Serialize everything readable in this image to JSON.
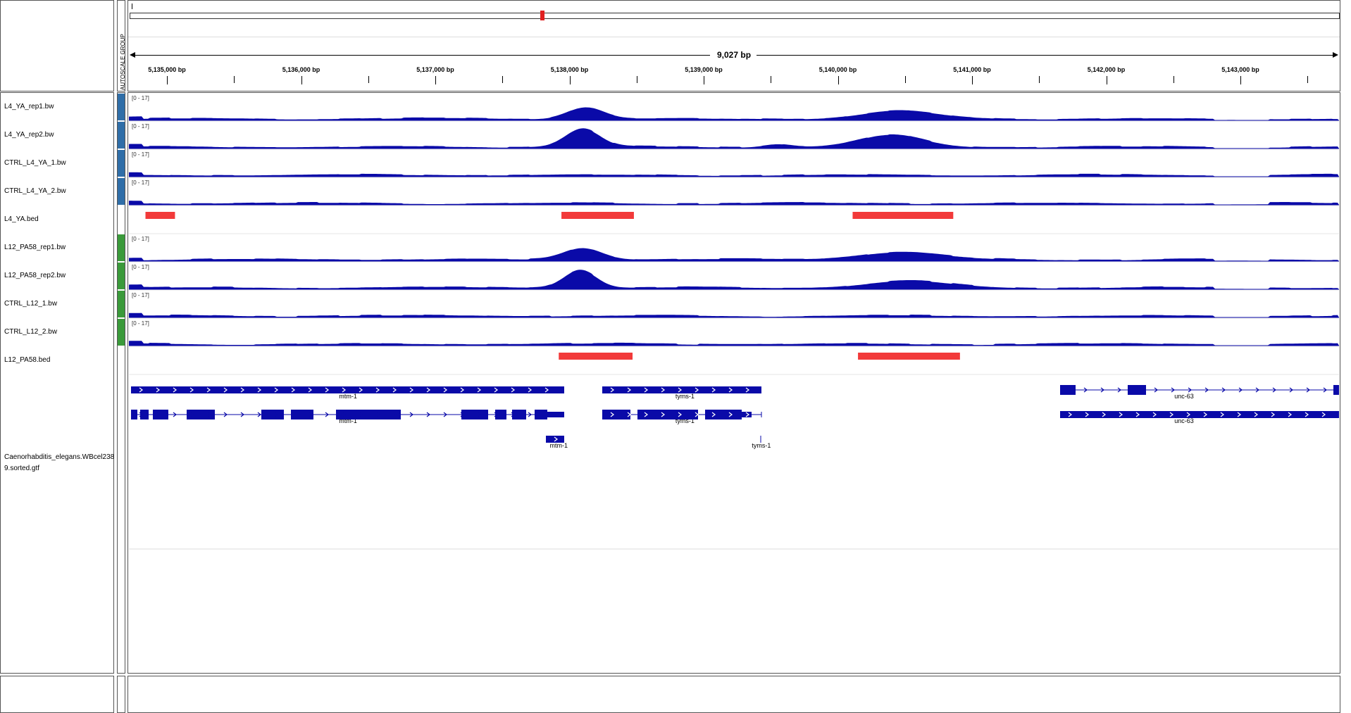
{
  "ruler": {
    "span_label": "9,027 bp",
    "ticks": [
      {
        "label": "5,135,000 bp",
        "pos": 5135000
      },
      {
        "label": "5,136,000 bp",
        "pos": 5136000
      },
      {
        "label": "5,137,000 bp",
        "pos": 5137000
      },
      {
        "label": "5,138,000 bp",
        "pos": 5138000
      },
      {
        "label": "5,139,000 bp",
        "pos": 5139000
      },
      {
        "label": "5,140,000 bp",
        "pos": 5140000
      },
      {
        "label": "5,141,000 bp",
        "pos": 5141000
      },
      {
        "label": "5,142,000 bp",
        "pos": 5142000
      },
      {
        "label": "5,143,000 bp",
        "pos": 5143000
      }
    ]
  },
  "autoscale_label": "AUTOSCALE GROUP",
  "colors": {
    "signal": "#0a0aa8",
    "peak": "#f23a3a",
    "group_blue": "#2f6ea8",
    "group_green": "#3a9a3a",
    "gene": "#0a0aa8"
  },
  "tracks": [
    {
      "name": "L4_YA_rep1.bw",
      "range": "[0 - 17]",
      "group": "blue",
      "peaks": [
        {
          "c": 5138120,
          "h": 0.55,
          "w": 190
        },
        {
          "c": 5140450,
          "h": 0.35,
          "w": 380
        }
      ]
    },
    {
      "name": "L4_YA_rep2.bw",
      "range": "[0 - 17]",
      "group": "blue",
      "peaks": [
        {
          "c": 5138100,
          "h": 0.85,
          "w": 180
        },
        {
          "c": 5140400,
          "h": 0.55,
          "w": 330
        },
        {
          "c": 5139550,
          "h": 0.15,
          "w": 150
        }
      ]
    },
    {
      "name": "CTRL_L4_YA_1.bw",
      "range": "[0 - 17]",
      "group": "blue",
      "peaks": []
    },
    {
      "name": "CTRL_L4_YA_2.bw",
      "range": "[0 - 17]",
      "group": "blue",
      "peaks": []
    },
    {
      "name": "L4_YA.bed",
      "range": "",
      "group": "none",
      "bed": [
        [
          5134840,
          5135060
        ],
        [
          5137940,
          5138480
        ],
        [
          5140110,
          5140860
        ]
      ]
    },
    {
      "name": "L12_PA58_rep1.bw",
      "range": "[0 - 17]",
      "group": "green",
      "peaks": [
        {
          "c": 5138100,
          "h": 0.55,
          "w": 200
        },
        {
          "c": 5140450,
          "h": 0.35,
          "w": 420
        }
      ]
    },
    {
      "name": "L12_PA58_rep2.bw",
      "range": "[0 - 17]",
      "group": "green",
      "peaks": [
        {
          "c": 5138080,
          "h": 0.85,
          "w": 170
        },
        {
          "c": 5140520,
          "h": 0.3,
          "w": 430
        }
      ]
    },
    {
      "name": "CTRL_L12_1.bw",
      "range": "[0 - 17]",
      "group": "green",
      "peaks": []
    },
    {
      "name": "CTRL_L12_2.bw",
      "range": "[0 - 17]",
      "group": "green",
      "peaks": []
    },
    {
      "name": "L12_PA58.bed",
      "range": "",
      "group": "none",
      "bed": [
        [
          5137920,
          5138470
        ],
        [
          5140150,
          5140910
        ]
      ]
    }
  ],
  "annotation_track": {
    "name": "Caenorhabditis_elegans.WBcel2389.sorted.gtf",
    "genes": [
      {
        "label": "mtm-1",
        "row": 0,
        "label_pos": 5136350
      },
      {
        "label": "tyms-1",
        "row": 0,
        "label_pos": 5138860
      },
      {
        "label": "unc-63",
        "row": 0,
        "label_pos": 5142580
      },
      {
        "label": "mtm-1",
        "row": 1,
        "label_pos": 5136350
      },
      {
        "label": "tyms-1",
        "row": 1,
        "label_pos": 5138860
      },
      {
        "label": "unc-63",
        "row": 1,
        "label_pos": 5142580
      },
      {
        "label": "mtm-1",
        "row": 2,
        "label_pos": 5137920
      },
      {
        "label": "tyms-1",
        "row": 2,
        "label_pos": 5139430
      }
    ]
  }
}
